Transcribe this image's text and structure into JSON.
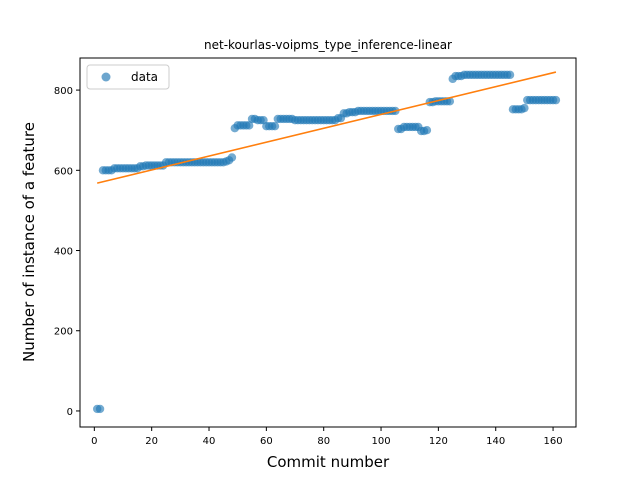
{
  "chart_data": {
    "type": "scatter",
    "title": "net-kourlas-voipms_type_inference-linear",
    "xlabel": "Commit number",
    "ylabel": "Number of instance of a feature",
    "xlim": [
      -5,
      168
    ],
    "ylim": [
      -40,
      880
    ],
    "xticks": [
      0,
      20,
      40,
      60,
      80,
      100,
      120,
      140,
      160
    ],
    "yticks": [
      0,
      200,
      400,
      600,
      800
    ],
    "grid": false,
    "legend": {
      "position": "top-left",
      "entries": [
        "data"
      ]
    },
    "colors": {
      "data": "#1f77b4",
      "fit": "#ff7f0e"
    },
    "series": [
      {
        "name": "data",
        "kind": "scatter",
        "x": [
          1,
          2,
          3,
          4,
          5,
          6,
          7,
          8,
          9,
          10,
          11,
          12,
          13,
          14,
          15,
          16,
          17,
          18,
          19,
          20,
          21,
          22,
          23,
          24,
          25,
          26,
          27,
          28,
          29,
          30,
          31,
          32,
          33,
          34,
          35,
          36,
          37,
          38,
          39,
          40,
          41,
          42,
          43,
          44,
          45,
          46,
          47,
          48,
          49,
          50,
          51,
          52,
          53,
          54,
          55,
          56,
          57,
          58,
          59,
          60,
          61,
          62,
          63,
          64,
          65,
          66,
          67,
          68,
          69,
          70,
          71,
          72,
          73,
          74,
          75,
          76,
          77,
          78,
          79,
          80,
          81,
          82,
          83,
          84,
          85,
          86,
          87,
          88,
          89,
          90,
          91,
          92,
          93,
          94,
          95,
          96,
          97,
          98,
          99,
          100,
          101,
          102,
          103,
          104,
          105,
          106,
          107,
          108,
          109,
          110,
          111,
          112,
          113,
          114,
          115,
          116,
          117,
          118,
          119,
          120,
          121,
          122,
          123,
          124,
          125,
          126,
          127,
          128,
          129,
          130,
          131,
          132,
          133,
          134,
          135,
          136,
          137,
          138,
          139,
          140,
          141,
          142,
          143,
          144,
          145,
          146,
          147,
          148,
          149,
          150,
          151,
          152,
          153,
          154,
          155,
          156,
          157,
          158,
          159,
          160,
          161
        ],
        "y": [
          5,
          5,
          600,
          600,
          600,
          600,
          605,
          605,
          605,
          605,
          605,
          605,
          605,
          605,
          605,
          610,
          610,
          612,
          612,
          612,
          612,
          612,
          612,
          612,
          620,
          620,
          620,
          620,
          620,
          620,
          620,
          620,
          620,
          620,
          620,
          620,
          620,
          620,
          620,
          620,
          620,
          620,
          620,
          620,
          620,
          622,
          625,
          632,
          705,
          712,
          712,
          712,
          712,
          712,
          728,
          728,
          725,
          725,
          725,
          710,
          710,
          710,
          710,
          728,
          728,
          728,
          728,
          728,
          728,
          725,
          725,
          725,
          725,
          725,
          725,
          725,
          725,
          725,
          725,
          725,
          725,
          725,
          725,
          725,
          730,
          730,
          742,
          742,
          745,
          745,
          745,
          748,
          748,
          748,
          748,
          748,
          748,
          748,
          748,
          748,
          748,
          748,
          748,
          748,
          748,
          703,
          703,
          708,
          708,
          708,
          708,
          708,
          708,
          698,
          698,
          700,
          770,
          770,
          772,
          772,
          772,
          772,
          772,
          772,
          828,
          835,
          835,
          835,
          838,
          838,
          838,
          838,
          838,
          838,
          838,
          838,
          838,
          838,
          838,
          838,
          838,
          838,
          838,
          838,
          838,
          752,
          752,
          752,
          752,
          755,
          775,
          775,
          775,
          775,
          775,
          775,
          775,
          775,
          775,
          775,
          775
        ]
      },
      {
        "name": "",
        "kind": "line",
        "x": [
          1,
          161
        ],
        "y": [
          568,
          845
        ]
      }
    ]
  }
}
